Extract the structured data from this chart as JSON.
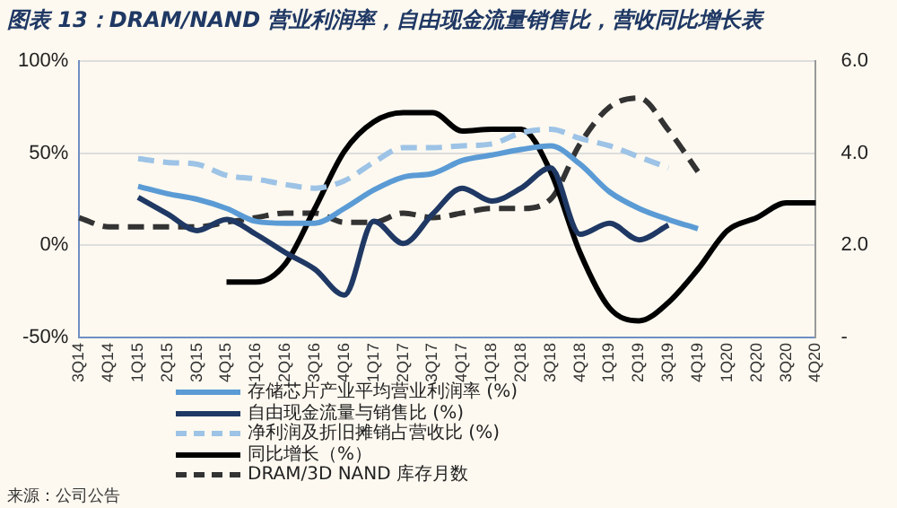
{
  "chart_data": {
    "type": "line",
    "title": "图表 13：DRAM/NAND 营业利润率，自由现金流量销售比，营收同比增长表",
    "categories": [
      "3Q14",
      "4Q14",
      "1Q15",
      "2Q15",
      "3Q15",
      "4Q15",
      "1Q16",
      "2Q16",
      "3Q16",
      "4Q16",
      "1Q17",
      "2Q17",
      "3Q17",
      "4Q17",
      "1Q18",
      "2Q18",
      "3Q18",
      "4Q18",
      "1Q19",
      "2Q19",
      "3Q19",
      "4Q19",
      "1Q20",
      "2Q20",
      "3Q20",
      "4Q20"
    ],
    "series": [
      {
        "name": "存储芯片产业平均营业利润率 (%)",
        "color": "#5b9bd5",
        "values": [
          null,
          null,
          32,
          28,
          25,
          20,
          13,
          12,
          12,
          20,
          30,
          37,
          39,
          46,
          49,
          52,
          54,
          44,
          29,
          20,
          14,
          9,
          null,
          null,
          null,
          null
        ]
      },
      {
        "name": "自由现金流量与销售比 (%)",
        "color": "#1f3864",
        "values": [
          null,
          null,
          26,
          17,
          8,
          14,
          6,
          -4,
          -13,
          -27,
          13,
          1,
          17,
          31,
          24,
          31,
          42,
          6,
          12,
          3,
          11,
          null,
          null,
          null,
          null,
          null
        ]
      },
      {
        "name": "净利润及折旧摊销占营收比 (%)",
        "color": "#9dc3e6",
        "line_style": "dashed",
        "values": [
          null,
          null,
          47,
          45,
          44,
          38,
          36,
          33,
          31,
          35,
          45,
          53,
          53,
          54,
          55,
          61,
          63,
          58,
          54,
          48,
          42,
          null,
          null,
          null,
          null,
          null
        ]
      },
      {
        "name": "同比增长（%）",
        "color": "#000000",
        "values": [
          null,
          null,
          null,
          null,
          null,
          -20,
          -20,
          -10,
          20,
          51,
          67,
          72,
          72,
          62,
          63,
          63,
          40,
          -4,
          -34,
          -41,
          -31,
          -13,
          8,
          15,
          23,
          23
        ]
      },
      {
        "name": "DRAM/3D NAND 库存月数",
        "color": "#333333",
        "line_style": "dashed",
        "axis": "y2",
        "values": [
          2.6,
          2.4,
          2.4,
          2.4,
          2.4,
          2.5,
          2.6,
          2.7,
          2.7,
          2.5,
          2.5,
          2.7,
          2.6,
          2.7,
          2.8,
          2.8,
          3.0,
          4.2,
          5.0,
          5.2,
          4.5,
          3.6,
          null,
          null,
          null,
          null
        ]
      }
    ],
    "ylim": [
      -50,
      100
    ],
    "yticks": [
      {
        "value": -50,
        "label": "-50%"
      },
      {
        "value": 0,
        "label": "0%"
      },
      {
        "value": 50,
        "label": "50%"
      },
      {
        "value": 100,
        "label": "100%"
      }
    ],
    "y2lim": [
      0,
      6
    ],
    "y2ticks": [
      {
        "value": 0,
        "label": "-"
      },
      {
        "value": 2,
        "label": "2.0"
      },
      {
        "value": 4,
        "label": "4.0"
      },
      {
        "value": 6,
        "label": "6.0"
      }
    ],
    "grid": "y",
    "legend": "bottom",
    "marker": "none",
    "annotations": [
      "来源：公司公告"
    ]
  }
}
